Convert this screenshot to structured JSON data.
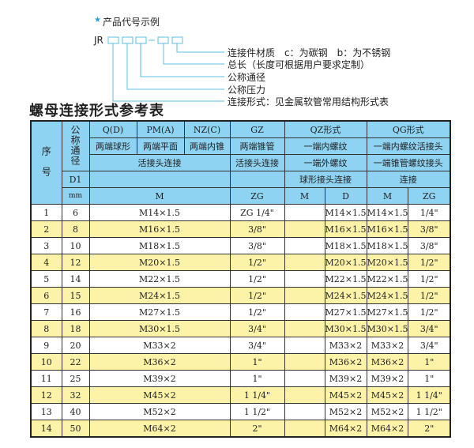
{
  "legend": {
    "star_icon": "star-icon",
    "heading": "产品代号示例",
    "code_prefix": "JR",
    "code_dash": "-",
    "labels": [
      "连接件材质　c：为碳钢　b：为不锈钢",
      "总长（长度可根据用户要求定制）",
      "公称通径",
      "公称压力",
      "连接形式：见金属软管常用结构形式表"
    ],
    "accent": "#5bbfe0"
  },
  "section_title": "螺母连接形式参考表",
  "table": {
    "header": {
      "seq": "序　号",
      "nominal": "公称通径",
      "d1": "D1",
      "mm": "mm",
      "qd": "Q(D)",
      "pm": "PM(A)",
      "nz": "NZ(C)",
      "gz": "GZ",
      "qz": "QZ形式",
      "qg": "QG形式",
      "qd2": "两端球形",
      "pm2": "两端平面",
      "nz2": "两端内锥",
      "gz2": "两端锥管",
      "qz2": "一端内螺纹",
      "qg2": "一端内螺纹活接头",
      "union1": "活接头连接",
      "gz3": "活接头连接",
      "qz3": "一端外螺纹",
      "qg3": "一端锥管螺纹接头",
      "qz4": "球形接头连接",
      "qg4": "连接",
      "m": "M",
      "zg": "ZG",
      "qz_m": "M",
      "qz_d": "D",
      "qg_m": "M",
      "qg_zg": "ZG"
    },
    "rows": [
      {
        "no": "1",
        "dn": "6",
        "m": "M14×1.5",
        "zg": "ZG 1/4\"",
        "qz_m": "",
        "qz_d": "M14×1.5",
        "qg_m": "M14×1.5",
        "qg_zg": "1/4\""
      },
      {
        "no": "2",
        "dn": "8",
        "m": "M16×1.5",
        "zg": "3/8\"",
        "qz_m": "",
        "qz_d": "M16×1.5",
        "qg_m": "M16×1.5",
        "qg_zg": "3/8\""
      },
      {
        "no": "3",
        "dn": "10",
        "m": "M18×1.5",
        "zg": "3/8\"",
        "qz_m": "",
        "qz_d": "M18×1.5",
        "qg_m": "M18×1.5",
        "qg_zg": "3/8\""
      },
      {
        "no": "4",
        "dn": "12",
        "m": "M20×1.5",
        "zg": "1/2\"",
        "qz_m": "",
        "qz_d": "M20×1.5",
        "qg_m": "M20×1.5",
        "qg_zg": "1/2\""
      },
      {
        "no": "5",
        "dn": "14",
        "m": "M22×1.5",
        "zg": "1/2\"",
        "qz_m": "",
        "qz_d": "M22×1.5",
        "qg_m": "M22×1.5",
        "qg_zg": "1/2\""
      },
      {
        "no": "6",
        "dn": "15",
        "m": "M24×1.5",
        "zg": "1/2\"",
        "qz_m": "",
        "qz_d": "M24×1.5",
        "qg_m": "M24×1.5",
        "qg_zg": "1/2\""
      },
      {
        "no": "7",
        "dn": "16",
        "m": "M27×1.5",
        "zg": "1/2\"",
        "qz_m": "",
        "qz_d": "M27×1.5",
        "qg_m": "M27×1.5",
        "qg_zg": "1/2\""
      },
      {
        "no": "8",
        "dn": "18",
        "m": "M30×1.5",
        "zg": "3/4\"",
        "qz_m": "",
        "qz_d": "M30×1.5",
        "qg_m": "M30×1.5",
        "qg_zg": "3/4\""
      },
      {
        "no": "9",
        "dn": "20",
        "m": "M33×2",
        "zg": "3/4\"",
        "qz_m": "",
        "qz_d": "M33×2",
        "qg_m": "M33×2",
        "qg_zg": "3/4\""
      },
      {
        "no": "10",
        "dn": "22",
        "m": "M36×2",
        "zg": "1\"",
        "qz_m": "",
        "qz_d": "M36×2",
        "qg_m": "M36×2",
        "qg_zg": "1\""
      },
      {
        "no": "11",
        "dn": "25",
        "m": "M39×2",
        "zg": "1\"",
        "qz_m": "",
        "qz_d": "M39×2",
        "qg_m": "M39×2",
        "qg_zg": "1\""
      },
      {
        "no": "12",
        "dn": "32",
        "m": "M45×2",
        "zg": "1 1/4\"",
        "qz_m": "",
        "qz_d": "M45×2",
        "qg_m": "M45×2",
        "qg_zg": "1 1/4\""
      },
      {
        "no": "13",
        "dn": "40",
        "m": "M52×2",
        "zg": "1 1/2\"",
        "qz_m": "",
        "qz_d": "M52×2",
        "qg_m": "M52×2",
        "qg_zg": "1 1/2\""
      },
      {
        "no": "14",
        "dn": "50",
        "m": "M64×2",
        "zg": "2\"",
        "qz_m": "",
        "qz_d": "M64×2",
        "qg_m": "M64×2",
        "qg_zg": "2\""
      }
    ],
    "colors": {
      "header": "#8fd3f2",
      "stripe": "#fcf2a8"
    }
  }
}
